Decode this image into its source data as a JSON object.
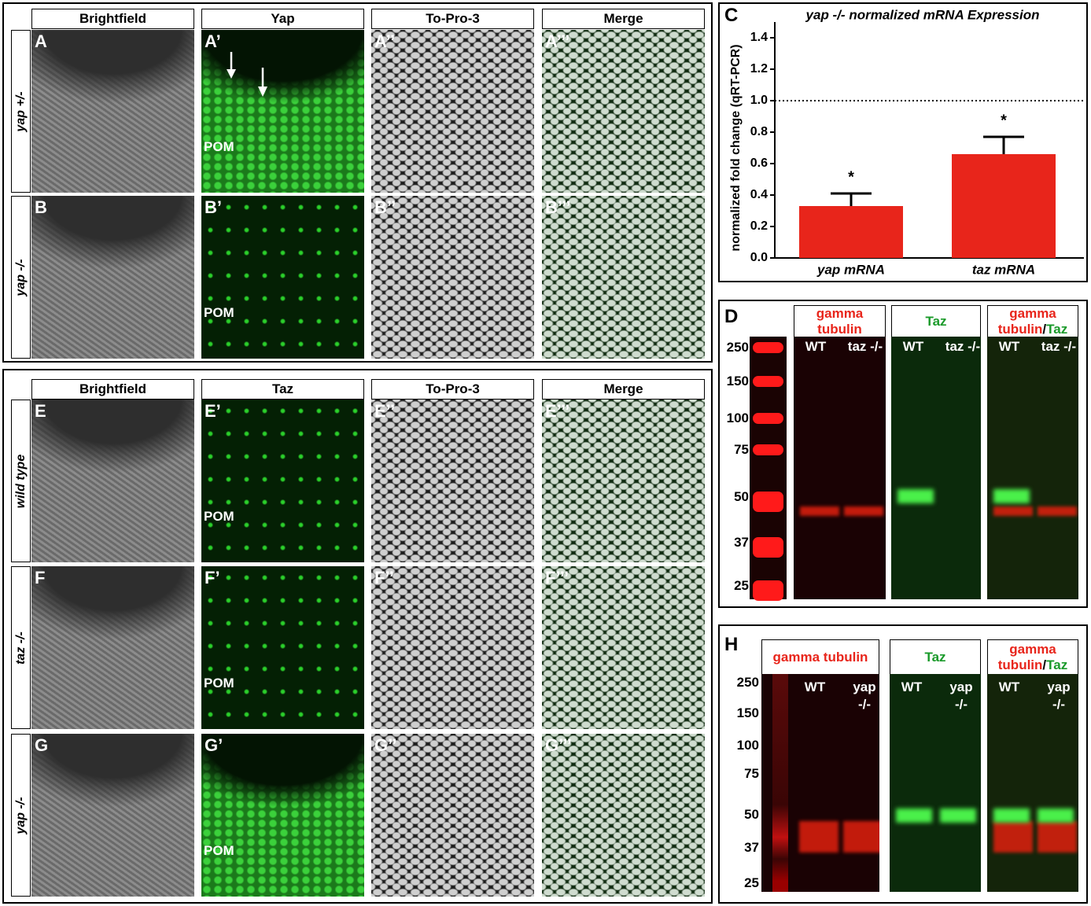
{
  "figure": {
    "top_block": {
      "headers": [
        "Brightfield",
        "Yap",
        "To-Pro-3",
        "Merge"
      ],
      "rows": [
        {
          "genotype": "yap +/-",
          "labels": [
            "A",
            "A’",
            "A’’",
            "A’’’"
          ],
          "pom": "POM"
        },
        {
          "genotype": "yap -/-",
          "labels": [
            "B",
            "B’",
            "B’’",
            "B’’’"
          ],
          "pom": "POM"
        }
      ]
    },
    "bottom_block": {
      "headers": [
        "Brightfield",
        "Taz",
        "To-Pro-3",
        "Merge"
      ],
      "rows": [
        {
          "genotype": "wild type",
          "labels": [
            "E",
            "E’",
            "E’’",
            "E’’’"
          ],
          "pom": "POM"
        },
        {
          "genotype": "taz -/-",
          "labels": [
            "F",
            "F’",
            "F’’",
            "F’’’"
          ],
          "pom": "POM"
        },
        {
          "genotype": "yap -/-",
          "labels": [
            "G",
            "G’",
            "G’’",
            "G’’’"
          ],
          "pom": "POM"
        }
      ]
    },
    "blots": [
      {
        "label": "D",
        "ladder": [
          "250",
          "150",
          "100",
          "75",
          "50",
          "37",
          "25"
        ],
        "panels": [
          {
            "title": [
              "gamma tubulin"
            ],
            "title_colors": [
              "#e8251b"
            ],
            "lanes": [
              "WT",
              "taz -/-"
            ]
          },
          {
            "title": [
              "Taz"
            ],
            "title_colors": [
              "#1a9a2a"
            ],
            "lanes": [
              "WT",
              "taz -/-"
            ]
          },
          {
            "title": [
              "gamma tubulin",
              "/",
              "Taz"
            ],
            "title_colors": [
              "#e8251b",
              "#000000",
              "#1a9a2a"
            ],
            "lanes": [
              "WT",
              "taz -/-"
            ]
          }
        ]
      },
      {
        "label": "H",
        "ladder": [
          "250",
          "150",
          "100",
          "75",
          "50",
          "37",
          "25"
        ],
        "panels": [
          {
            "title": [
              "gamma tubulin"
            ],
            "title_colors": [
              "#e8251b"
            ],
            "lanes": [
              "WT",
              "yap -/-"
            ]
          },
          {
            "title": [
              "Taz"
            ],
            "title_colors": [
              "#1a9a2a"
            ],
            "lanes": [
              "WT",
              "yap -/-"
            ]
          },
          {
            "title": [
              "gamma tubulin",
              "/",
              "Taz"
            ],
            "title_colors": [
              "#e8251b",
              "#000000",
              "#1a9a2a"
            ],
            "lanes": [
              "WT",
              "yap -/-"
            ]
          }
        ]
      }
    ]
  },
  "chart_data": {
    "type": "bar",
    "panel_label": "C",
    "title": "yap -/- normalized mRNA Expression",
    "ylabel": "normalized fold change (qRT-PCR)",
    "categories": [
      "yap mRNA",
      "taz mRNA"
    ],
    "values": [
      0.33,
      0.66
    ],
    "errors": [
      0.08,
      0.11
    ],
    "annotations": [
      "*",
      "*"
    ],
    "color": "#e8251b",
    "reference_line": 1,
    "ylim": [
      0,
      1.5
    ],
    "yticks": [
      {
        "value": 0,
        "label": "0.0"
      },
      0.2,
      0.4,
      0.6,
      0.8,
      {
        "value": 1,
        "label": "1.0"
      },
      1.2,
      1.4
    ]
  }
}
